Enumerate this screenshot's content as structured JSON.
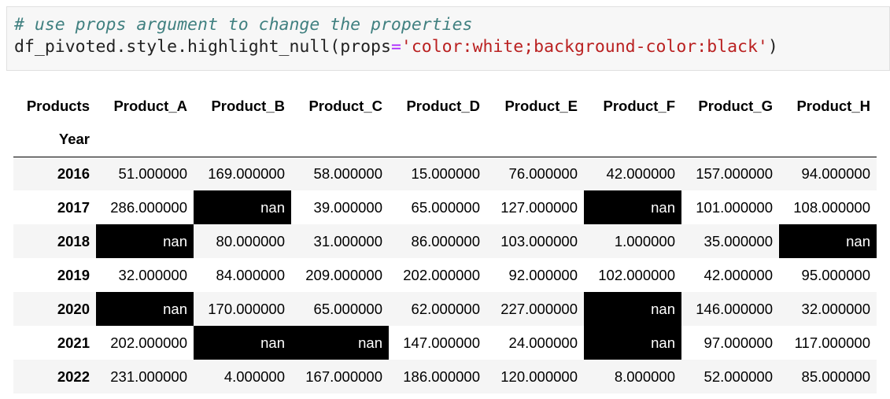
{
  "code": {
    "comment": "# use props argument to change the properties",
    "line2_prefix": "df_pivoted.style.highlight_null(props",
    "line2_eq": "=",
    "line2_string": "'color:white;background-color:black'",
    "line2_suffix": ")"
  },
  "table": {
    "index_name": "Products",
    "row_index_label": "Year",
    "columns": [
      "Product_A",
      "Product_B",
      "Product_C",
      "Product_D",
      "Product_E",
      "Product_F",
      "Product_G",
      "Product_H"
    ],
    "rows": [
      {
        "year": "2016",
        "cells": [
          "51.000000",
          "169.000000",
          "58.000000",
          "15.000000",
          "76.000000",
          "42.000000",
          "157.000000",
          "94.000000"
        ]
      },
      {
        "year": "2017",
        "cells": [
          "286.000000",
          "nan",
          "39.000000",
          "65.000000",
          "127.000000",
          "nan",
          "101.000000",
          "108.000000"
        ]
      },
      {
        "year": "2018",
        "cells": [
          "nan",
          "80.000000",
          "31.000000",
          "86.000000",
          "103.000000",
          "1.000000",
          "35.000000",
          "nan"
        ]
      },
      {
        "year": "2019",
        "cells": [
          "32.000000",
          "84.000000",
          "209.000000",
          "202.000000",
          "92.000000",
          "102.000000",
          "42.000000",
          "95.000000"
        ]
      },
      {
        "year": "2020",
        "cells": [
          "nan",
          "170.000000",
          "65.000000",
          "62.000000",
          "227.000000",
          "nan",
          "146.000000",
          "32.000000"
        ]
      },
      {
        "year": "2021",
        "cells": [
          "202.000000",
          "nan",
          "nan",
          "147.000000",
          "24.000000",
          "nan",
          "97.000000",
          "117.000000"
        ]
      },
      {
        "year": "2022",
        "cells": [
          "231.000000",
          "4.000000",
          "167.000000",
          "186.000000",
          "120.000000",
          "8.000000",
          "52.000000",
          "85.000000"
        ]
      }
    ]
  },
  "colors": {
    "null_bg": "#000000",
    "null_fg": "#ffffff",
    "stripe": "#f5f5f5"
  }
}
